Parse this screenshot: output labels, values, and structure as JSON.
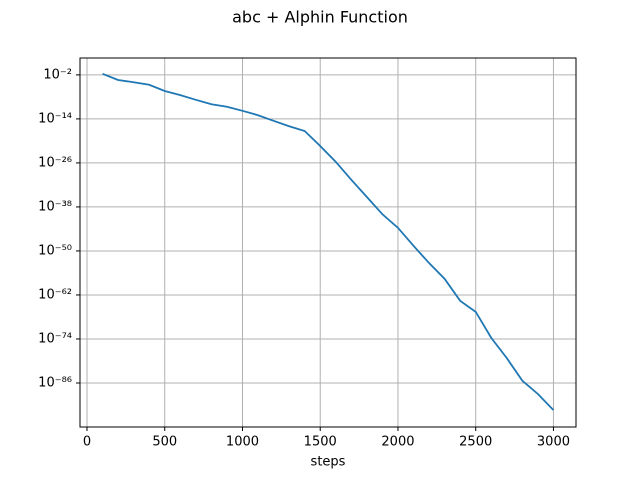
{
  "chart_data": {
    "type": "line",
    "title": "abc + Alphin Function",
    "xlabel": "steps",
    "x": [
      100,
      200,
      300,
      400,
      500,
      600,
      700,
      800,
      900,
      1000,
      1100,
      1200,
      1300,
      1400,
      1500,
      1600,
      1700,
      1800,
      1900,
      2000,
      2100,
      2200,
      2300,
      2400,
      2500,
      2600,
      2700,
      2800,
      2900,
      3000
    ],
    "series": [
      {
        "name": "abc + Alphin Function",
        "color": "#1f77b4",
        "values": [
          0.02,
          0.0004,
          0.0001,
          2e-05,
          4e-07,
          3e-08,
          1.6e-09,
          1e-10,
          2e-11,
          1.6e-12,
          1e-13,
          3e-15,
          1e-16,
          5e-18,
          4e-22,
          2e-26,
          2.5e-31,
          5e-36,
          1e-40,
          2e-44,
          2.5e-49,
          5e-54,
          2.5e-58,
          2.5e-64,
          2.5e-67,
          2e-74,
          6e-80,
          4e-86,
          1e-89,
          4e-94
        ]
      }
    ],
    "xlim": [
      -45,
      3145
    ],
    "xticks": [
      0,
      500,
      1000,
      1500,
      2000,
      2500,
      3000
    ],
    "ylim": [
      1e-98,
      400
    ],
    "ylog": true,
    "yticks": [
      {
        "value": 0.01,
        "label": "10⁻²"
      },
      {
        "value": 1e-14,
        "label": "10⁻¹⁴"
      },
      {
        "value": 1e-26,
        "label": "10⁻²⁶"
      },
      {
        "value": 1e-38,
        "label": "10⁻³⁸"
      },
      {
        "value": 1e-50,
        "label": "10⁻⁵⁰"
      },
      {
        "value": 1e-62,
        "label": "10⁻⁶²"
      },
      {
        "value": 1e-74,
        "label": "10⁻⁷⁴"
      },
      {
        "value": 1e-86,
        "label": "10⁻⁸⁶"
      }
    ],
    "grid": true
  }
}
